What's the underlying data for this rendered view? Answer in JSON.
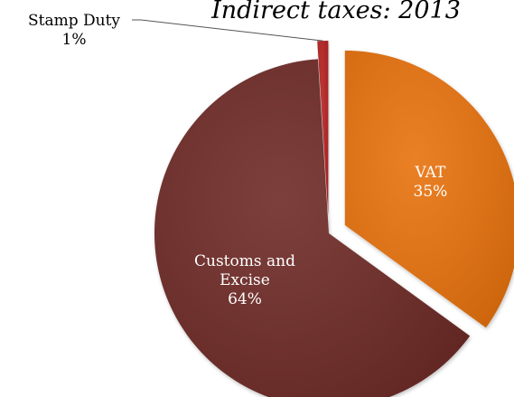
{
  "chart_data": {
    "type": "pie",
    "title": "Indirect taxes: 2013",
    "slices": [
      {
        "name": "VAT",
        "value": 35,
        "pct_label": "35%",
        "color": "#E8720C",
        "label_color": "#ffffff",
        "exploded": true
      },
      {
        "name": "Customs and Excise",
        "value": 64,
        "pct_label": "64%",
        "color": "#6E2A28",
        "label_color": "#ffffff",
        "exploded": false
      },
      {
        "name": "Stamp Duty",
        "value": 1,
        "pct_label": "1%",
        "color": "#B82222",
        "label_color": "#000000",
        "exploded": true
      }
    ]
  }
}
